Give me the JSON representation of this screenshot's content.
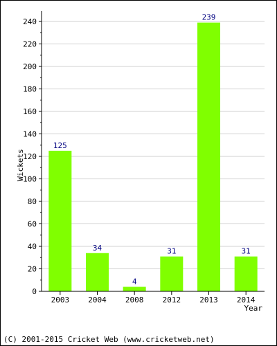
{
  "chart_data": {
    "type": "bar",
    "categories": [
      "2003",
      "2004",
      "2008",
      "2012",
      "2013",
      "2014"
    ],
    "values": [
      125,
      34,
      4,
      31,
      239,
      31
    ],
    "title": "",
    "xlabel": "Year",
    "ylabel": "Wickets",
    "ylim": [
      0,
      240
    ],
    "yticks": [
      0,
      20,
      40,
      60,
      80,
      100,
      120,
      140,
      160,
      180,
      200,
      220,
      240
    ],
    "grid": true,
    "bar_color": "#80ff00",
    "label_color": "#000080"
  },
  "footer": "(C) 2001-2015 Cricket Web (www.cricketweb.net)"
}
